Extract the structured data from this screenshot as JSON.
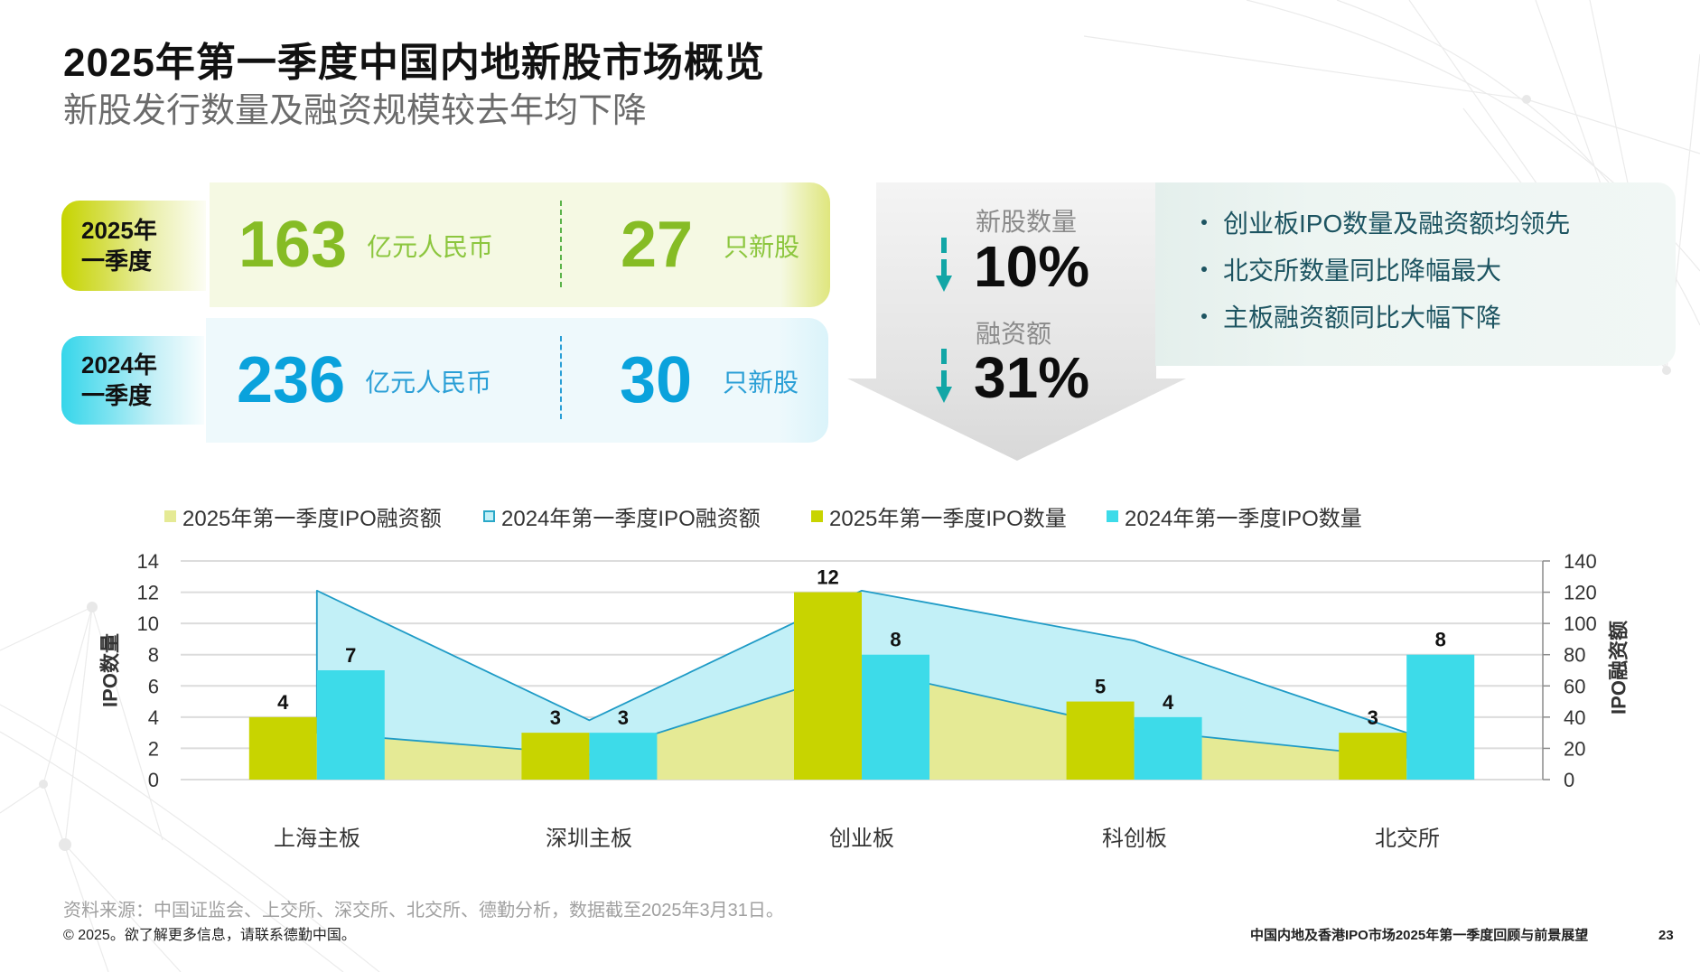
{
  "header": {
    "title": "2025年第一季度中国内地新股市场概览",
    "subtitle": "新股发行数量及融资规模较去年均下降"
  },
  "summary": {
    "rows": [
      {
        "period_line1": "2025年",
        "period_line2": "一季度",
        "amount": "163",
        "amount_unit": "亿元人民币",
        "count": "27",
        "count_unit": "只新股"
      },
      {
        "period_line1": "2024年",
        "period_line2": "一季度",
        "amount": "236",
        "amount_unit": "亿元人民币",
        "count": "30",
        "count_unit": "只新股"
      }
    ]
  },
  "change": {
    "items": [
      {
        "label": "新股数量",
        "value": "10%",
        "direction_icon": "arrow-down-icon"
      },
      {
        "label": "融资额",
        "value": "31%",
        "direction_icon": "arrow-down-icon"
      }
    ]
  },
  "highlights": {
    "items": [
      "创业板IPO数量及融资额均领先",
      "北交所数量同比降幅最大",
      "主板融资额同比大幅下降"
    ]
  },
  "colors": {
    "green_2025": "#86bc25",
    "cyan_2024": "#0aa2dc",
    "bar_2025": "#c8d400",
    "bar_2024": "#3ddbe9",
    "area_2025": "#e5ea95",
    "area_2024": "#c2f0f7",
    "area_line": "#1f9bc6",
    "down_arrow": "#12a6a6",
    "bullet_text": "#1d5461"
  },
  "chart_data": {
    "type": "bar",
    "title": "",
    "categories": [
      "上海主板",
      "深圳主板",
      "创业板",
      "科创板",
      "北交所"
    ],
    "series": [
      {
        "name": "2025年第一季度IPO融资额",
        "type": "area",
        "stacked": true,
        "axis": "right",
        "values": [
          30,
          16,
          71,
          32,
          14
        ],
        "color": "#e5ea95"
      },
      {
        "name": "2024年第一季度IPO融资额",
        "type": "area",
        "stacked": true,
        "axis": "right",
        "values": [
          91,
          22,
          50,
          57,
          16
        ],
        "color": "#c2f0f7",
        "stroke": "#1f9bc6"
      },
      {
        "name": "2025年第一季度IPO数量",
        "type": "bar",
        "axis": "left",
        "values": [
          4,
          3,
          12,
          5,
          3
        ],
        "color": "#c8d400"
      },
      {
        "name": "2024年第一季度IPO数量",
        "type": "bar",
        "axis": "left",
        "values": [
          7,
          3,
          8,
          4,
          8
        ],
        "color": "#3ddbe9"
      }
    ],
    "xlabel": "",
    "ylabel": "IPO数量",
    "ylim": [
      0,
      14
    ],
    "yticks": [
      0,
      2,
      4,
      6,
      8,
      10,
      12,
      14
    ],
    "y2label": "IPO融资额",
    "y2lim": [
      0,
      140
    ],
    "y2ticks": [
      0,
      20,
      40,
      60,
      80,
      100,
      120,
      140
    ],
    "grid": true,
    "legend_position": "top",
    "data_labels": true
  },
  "footer": {
    "source": "资料来源：中国证监会、上交所、深交所、北交所、德勤分析，数据截至2025年3月31日。",
    "copyright": "© 2025。欲了解更多信息，请联系德勤中国。",
    "doc_title": "中国内地及香港IPO市场2025年第一季度回顾与前景展望",
    "page_number": "23"
  }
}
